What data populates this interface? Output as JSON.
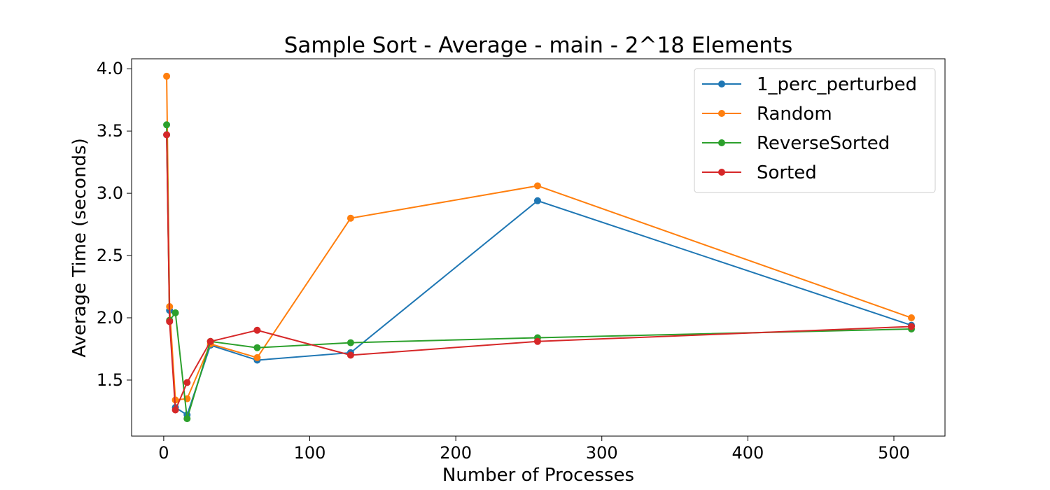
{
  "chart_data": {
    "type": "line",
    "title": "Sample Sort - Average - main - 2^18 Elements",
    "xlabel": "Number of Processes",
    "ylabel": "Average Time (seconds)",
    "xlim": [
      -22,
      535
    ],
    "ylim": [
      1.05,
      4.08
    ],
    "xticks": [
      0,
      100,
      200,
      300,
      400,
      500
    ],
    "yticks": [
      1.5,
      2.0,
      2.5,
      3.0,
      3.5,
      4.0
    ],
    "xtick_labels": [
      "0",
      "100",
      "200",
      "300",
      "400",
      "500"
    ],
    "ytick_labels": [
      "1.5",
      "2.0",
      "2.5",
      "3.0",
      "3.5",
      "4.0"
    ],
    "x": [
      2,
      4,
      8,
      16,
      32,
      64,
      128,
      256,
      512
    ],
    "legend_position": "top-right",
    "grid": false,
    "series": [
      {
        "name": "1_perc_perturbed",
        "color": "#1f77b4",
        "values": [
          3.47,
          2.06,
          1.28,
          1.22,
          1.78,
          1.66,
          1.72,
          2.94,
          1.94
        ]
      },
      {
        "name": "Random",
        "color": "#ff7f0e",
        "values": [
          3.94,
          2.09,
          1.34,
          1.35,
          1.79,
          1.68,
          2.8,
          3.06,
          2.0
        ]
      },
      {
        "name": "ReverseSorted",
        "color": "#2ca02c",
        "values": [
          3.55,
          1.98,
          2.04,
          1.19,
          1.81,
          1.76,
          1.8,
          1.84,
          1.91
        ]
      },
      {
        "name": "Sorted",
        "color": "#d62728",
        "values": [
          3.47,
          1.97,
          1.26,
          1.48,
          1.81,
          1.9,
          1.7,
          1.81,
          1.93
        ]
      }
    ]
  }
}
